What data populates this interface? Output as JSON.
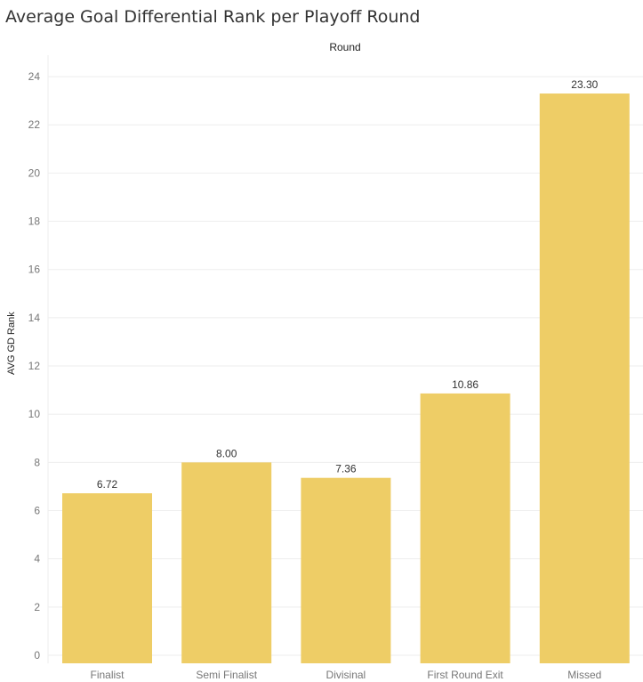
{
  "title": "Average Goal Differential Rank per Playoff Round",
  "x_header": "Round",
  "colors": {
    "bar": "#EECD66",
    "grid": "#EEEEEE",
    "axis_text": "#777777",
    "label_text": "#333333"
  },
  "chart_data": {
    "type": "bar",
    "title": "Average Goal Differential Rank per Playoff Round",
    "xlabel": "Round",
    "ylabel": "AVG GD Rank",
    "categories": [
      "Finalist",
      "Semi Finalist",
      "Divisinal",
      "First Round Exit",
      "Missed"
    ],
    "values": [
      6.72,
      8.0,
      7.36,
      10.86,
      23.3
    ],
    "value_labels": [
      "6.72",
      "8.00",
      "7.36",
      "10.86",
      "23.30"
    ],
    "yticks": [
      0,
      2,
      4,
      6,
      8,
      10,
      12,
      14,
      16,
      18,
      20,
      22,
      24
    ],
    "ylim": [
      0,
      24.5
    ],
    "grid": true,
    "legend": "none"
  }
}
